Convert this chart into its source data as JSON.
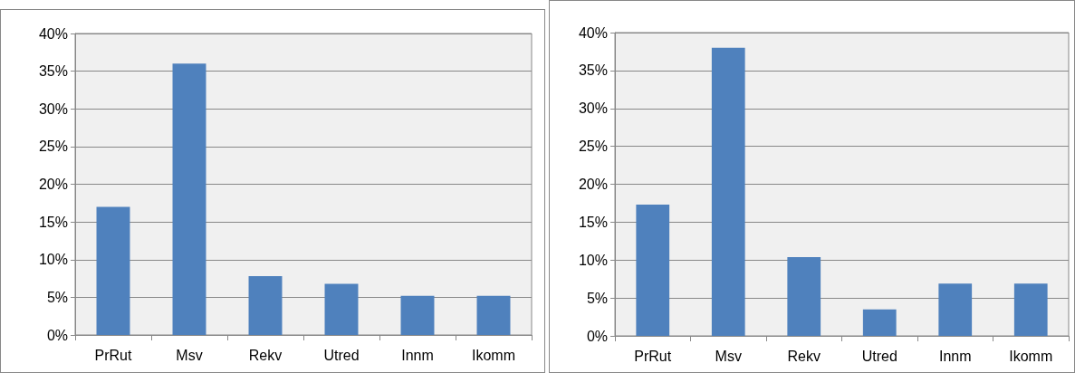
{
  "chart_data": [
    {
      "type": "bar",
      "categories": [
        "PrRut",
        "Msv",
        "Rekv",
        "Utred",
        "Innm",
        "Ikomm"
      ],
      "values": [
        17,
        36,
        7.8,
        6.8,
        5.2,
        5.2
      ],
      "color": "#4f81bd",
      "ylim": [
        0,
        40
      ],
      "yticks": [
        {
          "value": 0,
          "label": "0%"
        },
        {
          "value": 5,
          "label": "5%"
        },
        {
          "value": 10,
          "label": "10%"
        },
        {
          "value": 15,
          "label": "15%"
        },
        {
          "value": 20,
          "label": "20%"
        },
        {
          "value": 25,
          "label": "25%"
        },
        {
          "value": 30,
          "label": "30%"
        },
        {
          "value": 35,
          "label": "35%"
        },
        {
          "value": 40,
          "label": "40%"
        }
      ],
      "grid": "y"
    },
    {
      "type": "bar",
      "categories": [
        "PrRut",
        "Msv",
        "Rekv",
        "Utred",
        "Innm",
        "Ikomm"
      ],
      "values": [
        17.3,
        38,
        10.4,
        3.5,
        6.9,
        6.9
      ],
      "color": "#4f81bd",
      "ylim": [
        0,
        40
      ],
      "yticks": [
        {
          "value": 0,
          "label": "0%"
        },
        {
          "value": 5,
          "label": "5%"
        },
        {
          "value": 10,
          "label": "10%"
        },
        {
          "value": 15,
          "label": "15%"
        },
        {
          "value": 20,
          "label": "20%"
        },
        {
          "value": 25,
          "label": "25%"
        },
        {
          "value": 30,
          "label": "30%"
        },
        {
          "value": 35,
          "label": "35%"
        },
        {
          "value": 40,
          "label": "40%"
        }
      ],
      "grid": "y"
    }
  ]
}
